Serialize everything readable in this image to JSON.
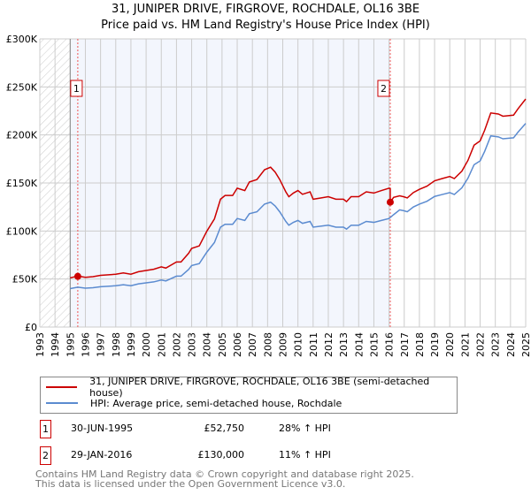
{
  "chart_data": {
    "type": "line",
    "title": "31, JUNIPER DRIVE, FIRGROVE, ROCHDALE, OL16 3BE",
    "subtitle": "Price paid vs. HM Land Registry's House Price Index (HPI)",
    "xlim": [
      1993,
      2025
    ],
    "ylim": [
      0,
      300000
    ],
    "x_ticks": [
      "1993",
      "1994",
      "1995",
      "1996",
      "1997",
      "1998",
      "1999",
      "2000",
      "2001",
      "2002",
      "2003",
      "2004",
      "2005",
      "2006",
      "2007",
      "2008",
      "2009",
      "2010",
      "2011",
      "2012",
      "2013",
      "2014",
      "2015",
      "2016",
      "2017",
      "2018",
      "2019",
      "2020",
      "2021",
      "2022",
      "2023",
      "2024",
      "2025"
    ],
    "y_ticks": [
      {
        "v": 0,
        "label": "£0"
      },
      {
        "v": 50000,
        "label": "£50K"
      },
      {
        "v": 100000,
        "label": "£100K"
      },
      {
        "v": 150000,
        "label": "£150K"
      },
      {
        "v": 200000,
        "label": "£200K"
      },
      {
        "v": 250000,
        "label": "£250K"
      },
      {
        "v": 300000,
        "label": "£300K"
      }
    ],
    "grid": true,
    "hatched_before": 1995,
    "shaded_range": [
      1995,
      2016.08
    ],
    "series": [
      {
        "name": "31, JUNIPER DRIVE, FIRGROVE, ROCHDALE, OL16 3BE (semi-detached house)",
        "color": "#cc0000",
        "unit_k": true,
        "points": [
          [
            1995,
            51.2
          ],
          [
            1995.5,
            53.1
          ],
          [
            1996,
            51.8
          ],
          [
            1996.5,
            52.5
          ],
          [
            1997,
            53.8
          ],
          [
            1998,
            55
          ],
          [
            1998.5,
            56.3
          ],
          [
            1999,
            55
          ],
          [
            1999.5,
            57.6
          ],
          [
            2000,
            58.9
          ],
          [
            2000.5,
            60.2
          ],
          [
            2001,
            62.7
          ],
          [
            2001.3,
            61.4
          ],
          [
            2002,
            67.8
          ],
          [
            2002.3,
            67.8
          ],
          [
            2002.8,
            76.8
          ],
          [
            2003,
            81.9
          ],
          [
            2003.5,
            84.5
          ],
          [
            2004,
            99.8
          ],
          [
            2004.5,
            112.6
          ],
          [
            2004.9,
            133.1
          ],
          [
            2005.2,
            137
          ],
          [
            2005.7,
            137
          ],
          [
            2006,
            144.6
          ],
          [
            2006.5,
            142.1
          ],
          [
            2006.8,
            151
          ],
          [
            2007.3,
            153.6
          ],
          [
            2007.8,
            163.8
          ],
          [
            2008.2,
            166.4
          ],
          [
            2008.5,
            161.3
          ],
          [
            2008.8,
            153.6
          ],
          [
            2009.2,
            140.8
          ],
          [
            2009.4,
            135.7
          ],
          [
            2009.7,
            139.5
          ],
          [
            2010,
            142.1
          ],
          [
            2010.3,
            138.2
          ],
          [
            2010.8,
            140.8
          ],
          [
            2011,
            133.1
          ],
          [
            2011.5,
            134.4
          ],
          [
            2012,
            135.7
          ],
          [
            2012.5,
            133.1
          ],
          [
            2013,
            133.1
          ],
          [
            2013.2,
            130.6
          ],
          [
            2013.5,
            135.7
          ],
          [
            2014,
            135.7
          ],
          [
            2014.5,
            140.8
          ],
          [
            2015,
            139.5
          ],
          [
            2015.5,
            142.1
          ],
          [
            2016,
            144.6
          ],
          [
            2016.08,
            144
          ],
          [
            2016.08,
            130
          ],
          [
            2016.3,
            135
          ],
          [
            2016.7,
            136.6
          ],
          [
            2017,
            135.5
          ],
          [
            2017.2,
            134.4
          ],
          [
            2017.6,
            140
          ],
          [
            2018,
            143.4
          ],
          [
            2018.5,
            146.7
          ],
          [
            2019,
            152.3
          ],
          [
            2019.5,
            154.6
          ],
          [
            2020,
            156.8
          ],
          [
            2020.3,
            154.6
          ],
          [
            2020.8,
            162.4
          ],
          [
            2021.2,
            173.6
          ],
          [
            2021.6,
            189.3
          ],
          [
            2022,
            193.8
          ],
          [
            2022.3,
            205
          ],
          [
            2022.7,
            222.9
          ],
          [
            2023.2,
            221.8
          ],
          [
            2023.5,
            219.5
          ],
          [
            2024.2,
            220.6
          ],
          [
            2024.5,
            227.4
          ],
          [
            2025,
            237.4
          ]
        ]
      },
      {
        "name": "HPI: Average price, semi-detached house, Rochdale",
        "color": "#5b8bd0",
        "unit_k": true,
        "points": [
          [
            1995,
            40
          ],
          [
            1995.5,
            41.5
          ],
          [
            1996,
            40.5
          ],
          [
            1996.5,
            41
          ],
          [
            1997,
            42
          ],
          [
            1998,
            43
          ],
          [
            1998.5,
            44
          ],
          [
            1999,
            43
          ],
          [
            1999.5,
            45
          ],
          [
            2000,
            46
          ],
          [
            2000.5,
            47
          ],
          [
            2001,
            49
          ],
          [
            2001.3,
            48
          ],
          [
            2002,
            53
          ],
          [
            2002.3,
            53
          ],
          [
            2002.8,
            60
          ],
          [
            2003,
            64
          ],
          [
            2003.5,
            66
          ],
          [
            2004,
            78
          ],
          [
            2004.5,
            88
          ],
          [
            2004.9,
            104
          ],
          [
            2005.2,
            107
          ],
          [
            2005.7,
            107
          ],
          [
            2006,
            113
          ],
          [
            2006.5,
            111
          ],
          [
            2006.8,
            118
          ],
          [
            2007.3,
            120
          ],
          [
            2007.8,
            128
          ],
          [
            2008.2,
            130
          ],
          [
            2008.5,
            126
          ],
          [
            2008.8,
            120
          ],
          [
            2009.2,
            110
          ],
          [
            2009.4,
            106
          ],
          [
            2009.7,
            109
          ],
          [
            2010,
            111
          ],
          [
            2010.3,
            108
          ],
          [
            2010.8,
            110
          ],
          [
            2011,
            104
          ],
          [
            2011.5,
            105
          ],
          [
            2012,
            106
          ],
          [
            2012.5,
            104
          ],
          [
            2013,
            104
          ],
          [
            2013.2,
            102
          ],
          [
            2013.5,
            106
          ],
          [
            2014,
            106
          ],
          [
            2014.5,
            110
          ],
          [
            2015,
            109
          ],
          [
            2015.5,
            111
          ],
          [
            2016,
            113
          ],
          [
            2016.3,
            117
          ],
          [
            2016.7,
            122
          ],
          [
            2017,
            121
          ],
          [
            2017.2,
            120
          ],
          [
            2017.6,
            125
          ],
          [
            2018,
            128
          ],
          [
            2018.5,
            131
          ],
          [
            2019,
            136
          ],
          [
            2019.5,
            138
          ],
          [
            2020,
            140
          ],
          [
            2020.3,
            138
          ],
          [
            2020.8,
            145
          ],
          [
            2021.2,
            155
          ],
          [
            2021.6,
            169
          ],
          [
            2022,
            173
          ],
          [
            2022.3,
            183
          ],
          [
            2022.7,
            199
          ],
          [
            2023.2,
            198
          ],
          [
            2023.5,
            196
          ],
          [
            2024.2,
            197
          ],
          [
            2024.5,
            203
          ],
          [
            2025,
            212
          ]
        ]
      }
    ],
    "sales": [
      {
        "label": "1",
        "x": 1995.5,
        "y": 52750
      },
      {
        "label": "2",
        "x": 2016.08,
        "y": 130000
      }
    ]
  },
  "legend": {
    "red": "31, JUNIPER DRIVE, FIRGROVE, ROCHDALE, OL16 3BE (semi-detached house)",
    "blue": "HPI: Average price, semi-detached house, Rochdale"
  },
  "table": [
    {
      "n": "1",
      "date": "30-JUN-1995",
      "price": "£52,750",
      "hpi": "28% ↑ HPI"
    },
    {
      "n": "2",
      "date": "29-JAN-2016",
      "price": "£130,000",
      "hpi": "11% ↑ HPI"
    }
  ],
  "footer": {
    "line1": "Contains HM Land Registry data © Crown copyright and database right 2025.",
    "line2": "This data is licensed under the Open Government Licence v3.0."
  }
}
